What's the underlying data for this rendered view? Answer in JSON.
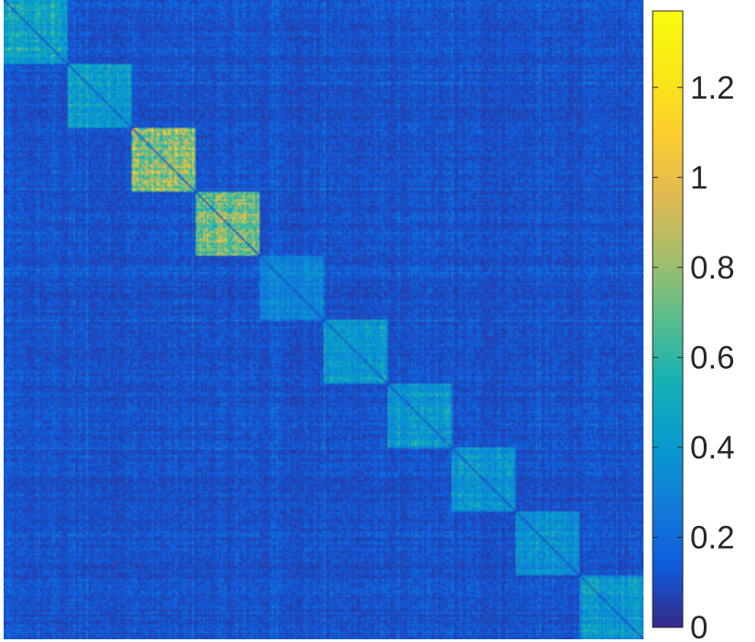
{
  "chart_data": {
    "type": "heatmap",
    "title": "",
    "xlabel": "",
    "ylabel": "",
    "axes_ticks_visible": false,
    "grid": false,
    "colormap": "parula",
    "colorbar": {
      "placement": "right",
      "range": [
        0,
        1.37
      ],
      "ticks": [
        0,
        0.2,
        0.4,
        0.6,
        0.8,
        1,
        1.2
      ],
      "tick_labels": [
        "0",
        "0.2",
        "0.4",
        "0.6",
        "0.8",
        "1",
        "1.2"
      ]
    },
    "matrix": {
      "num_blocks": 10,
      "background_mean": 0.12,
      "diagonal_value": 0.1,
      "blocks": [
        {
          "index": 1,
          "mean": 0.5
        },
        {
          "index": 2,
          "mean": 0.48
        },
        {
          "index": 3,
          "mean": 0.85
        },
        {
          "index": 4,
          "mean": 0.8
        },
        {
          "index": 5,
          "mean": 0.35
        },
        {
          "index": 6,
          "mean": 0.45
        },
        {
          "index": 7,
          "mean": 0.42
        },
        {
          "index": 8,
          "mean": 0.44
        },
        {
          "index": 9,
          "mean": 0.4
        },
        {
          "index": 10,
          "mean": 0.42
        }
      ]
    }
  }
}
